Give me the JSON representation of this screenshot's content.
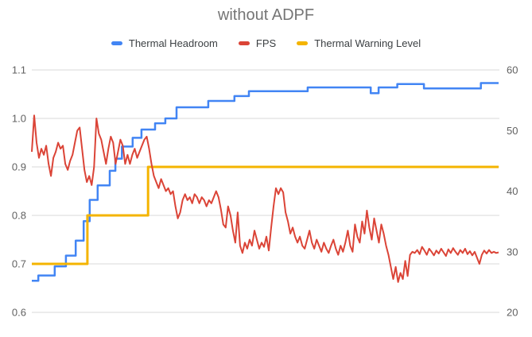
{
  "chart_data": {
    "type": "line",
    "title": "without ADPF",
    "title_color": "#757575",
    "background": "#ffffff",
    "grid_color": "#d9d9d9",
    "axis_text_color": "#616161",
    "legend_text_color": "#3c4043",
    "legend_position": "top",
    "grid": true,
    "legend": [
      {
        "label": "Thermal Headroom",
        "color": "#4285F4"
      },
      {
        "label": "FPS",
        "color": "#DB4437"
      },
      {
        "label": "Thermal Warning Level",
        "color": "#F4B400"
      }
    ],
    "left_axis": {
      "min": 0.6,
      "max": 1.1,
      "ticks": [
        {
          "value": 1.1,
          "label": "1.1"
        },
        {
          "value": 1.0,
          "label": "1.0"
        },
        {
          "value": 0.9,
          "label": "0.9"
        },
        {
          "value": 0.8,
          "label": "0.8"
        },
        {
          "value": 0.7,
          "label": "0.7"
        },
        {
          "value": 0.6,
          "label": "0.6"
        }
      ]
    },
    "right_axis": {
      "min": 20,
      "max": 60,
      "ticks": [
        {
          "value": 60,
          "label": "60"
        },
        {
          "value": 50,
          "label": "50"
        },
        {
          "value": 40,
          "label": "40"
        },
        {
          "value": 30,
          "label": "30"
        },
        {
          "value": 20,
          "label": "20"
        }
      ]
    },
    "series": [
      {
        "name": "Thermal Headroom",
        "axis": "left",
        "color": "#4285F4",
        "width": 2.5,
        "segments": [
          [
            0.0,
            0.014,
            0.665
          ],
          [
            0.014,
            0.049,
            0.676
          ],
          [
            0.049,
            0.073,
            0.695
          ],
          [
            0.073,
            0.094,
            0.717
          ],
          [
            0.094,
            0.111,
            0.748
          ],
          [
            0.111,
            0.124,
            0.788
          ],
          [
            0.124,
            0.141,
            0.832
          ],
          [
            0.141,
            0.167,
            0.862
          ],
          [
            0.167,
            0.179,
            0.892
          ],
          [
            0.179,
            0.193,
            0.917
          ],
          [
            0.193,
            0.216,
            0.942
          ],
          [
            0.216,
            0.235,
            0.96
          ],
          [
            0.235,
            0.264,
            0.977
          ],
          [
            0.264,
            0.286,
            0.99
          ],
          [
            0.286,
            0.31,
            1.0
          ],
          [
            0.31,
            0.378,
            1.023
          ],
          [
            0.378,
            0.434,
            1.036
          ],
          [
            0.434,
            0.465,
            1.046
          ],
          [
            0.465,
            0.591,
            1.056
          ],
          [
            0.591,
            0.726,
            1.064
          ],
          [
            0.726,
            0.743,
            1.052
          ],
          [
            0.743,
            0.783,
            1.064
          ],
          [
            0.783,
            0.84,
            1.071
          ],
          [
            0.84,
            0.962,
            1.062
          ],
          [
            0.962,
            1.0,
            1.073
          ]
        ]
      },
      {
        "name": "Thermal Warning Level",
        "axis": "left",
        "color": "#F4B400",
        "width": 3,
        "segments": [
          [
            0.0,
            0.119,
            0.7
          ],
          [
            0.119,
            0.249,
            0.8
          ],
          [
            0.249,
            1.0,
            0.9
          ]
        ]
      },
      {
        "name": "FPS",
        "axis": "right",
        "color": "#DB4437",
        "width": 2,
        "values": [
          46.5,
          52.5,
          48,
          45.5,
          47,
          46,
          47.5,
          44.5,
          42.5,
          45.5,
          46.5,
          48,
          47,
          47.5,
          44.5,
          43.5,
          45,
          46,
          48,
          50,
          50.5,
          47,
          43.5,
          41.5,
          42.5,
          41,
          44,
          52,
          49.5,
          48.5,
          46.5,
          44.5,
          47,
          49,
          48,
          44.5,
          46.5,
          48.5,
          47.5,
          44.5,
          46,
          44.5,
          46,
          47,
          45.5,
          46.5,
          47.5,
          48.5,
          49,
          47,
          44.5,
          42.5,
          41.5,
          40.5,
          42,
          41,
          40,
          40.5,
          39.5,
          40,
          37.5,
          35.5,
          36.5,
          38.5,
          39.5,
          38.5,
          39,
          38,
          39.5,
          39,
          38,
          39,
          38.5,
          37.5,
          38.5,
          38,
          39,
          40,
          39,
          37,
          34.5,
          34,
          37.5,
          36,
          33.5,
          31.5,
          36.5,
          31,
          29.8,
          31.5,
          30.5,
          32,
          31,
          33.5,
          32,
          30.5,
          31.5,
          30.8,
          32.5,
          30.2,
          34,
          37.5,
          40.5,
          39.5,
          40.5,
          39.8,
          36.5,
          35,
          33,
          34,
          32.5,
          31.5,
          32.5,
          31,
          30.5,
          32,
          33.5,
          31.5,
          30.5,
          32,
          31,
          30,
          31.5,
          30.5,
          29.8,
          31,
          32,
          30.5,
          29.5,
          31,
          30,
          31.5,
          33.5,
          31,
          30,
          34.5,
          32.5,
          31.5,
          35,
          33,
          36.8,
          34,
          32,
          35.5,
          33.5,
          31.5,
          34.5,
          33,
          31,
          29.5,
          27.5,
          25.5,
          27.5,
          25,
          26.5,
          25.5,
          28.5,
          26,
          29.5,
          30,
          29.8,
          30.3,
          29.6,
          30.8,
          30.2,
          29.5,
          30.5,
          30,
          29.4,
          30.2,
          29.7,
          30.5,
          29.9,
          29.3,
          30.4,
          29.8,
          30.6,
          30,
          29.5,
          30.3,
          29.8,
          30.5,
          29.6,
          30.1,
          29.4,
          30,
          29,
          28,
          29.5,
          30.2,
          29.7,
          30.3,
          29.8,
          30,
          29.8,
          29.9
        ]
      }
    ]
  }
}
